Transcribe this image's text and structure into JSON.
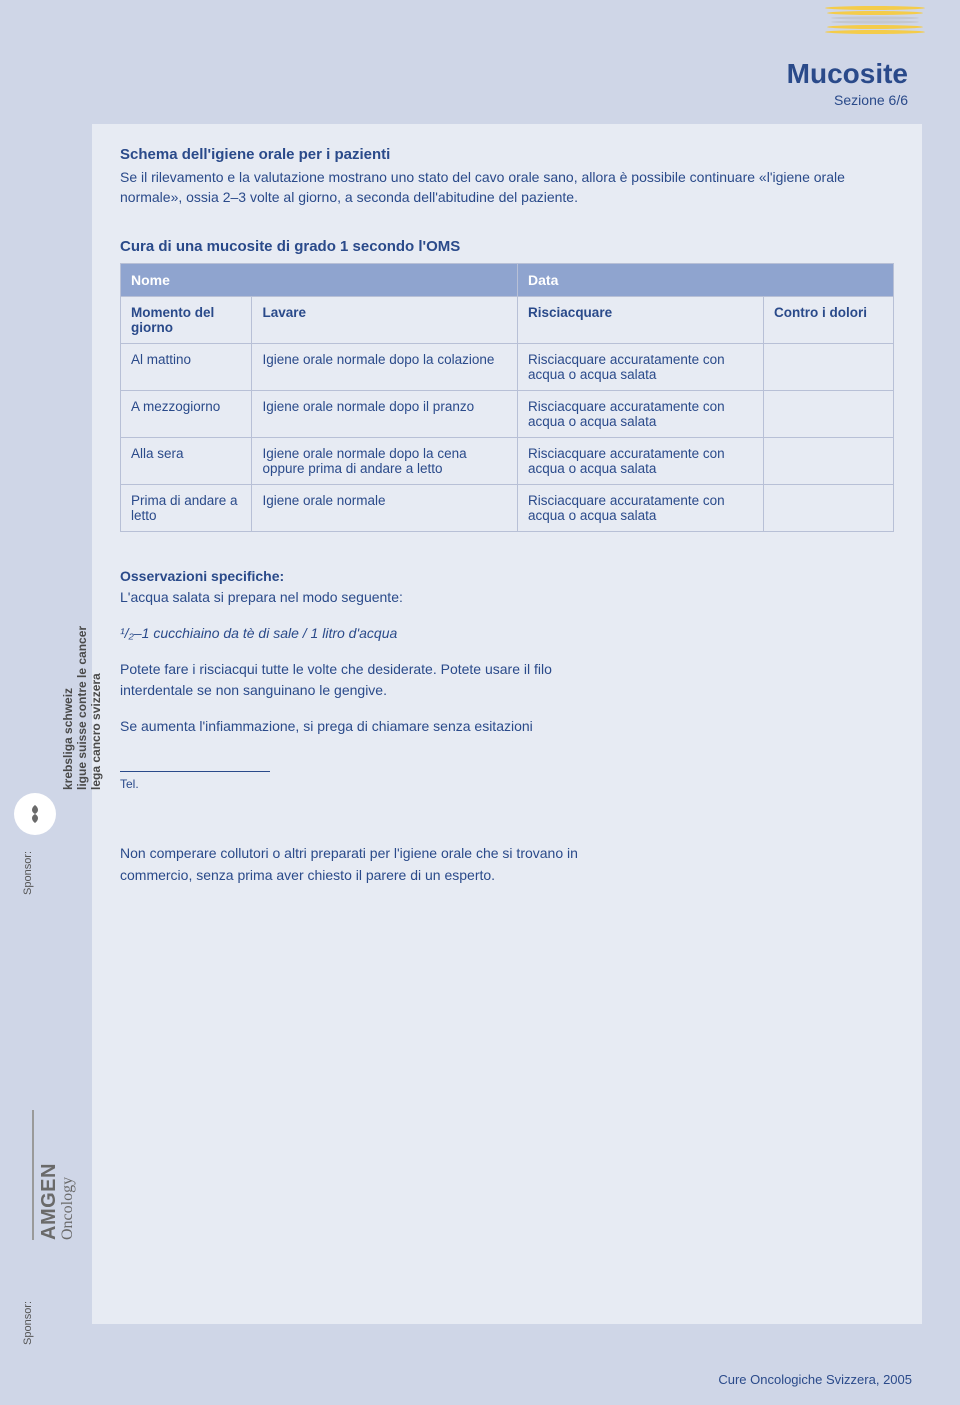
{
  "colors": {
    "page_bg": "#cfd6e7",
    "panel_bg": "#e7ebf3",
    "text": "#2a4a8a",
    "table_header_bg": "#8fa4cf",
    "table_header_text": "#ffffff",
    "table_border": "#b8c0d6",
    "sidebar_text": "#555555",
    "amgen_gray": "#6a6a6a"
  },
  "decor_line_colors": [
    "#f4cc4a",
    "#f4cc4a",
    "#c4c8d0",
    "#c4c8d0",
    "#f4cc4a",
    "#f4cc4a"
  ],
  "header": {
    "title": "Mucosite",
    "section": "Sezione 6/6"
  },
  "intro": {
    "heading": "Schema dell'igiene orale per i pazienti",
    "text": "Se il rilevamento e la valutazione mostrano uno stato del cavo orale sano, allora è possibile continuare «l'igiene orale normale», ossia 2–3 volte al giorno, a seconda dell'abitudine del paziente."
  },
  "table": {
    "caption": "Cura di una mucosite di grado 1 secondo l'OMS",
    "head1": {
      "left": "Nome",
      "right": "Data"
    },
    "columns": [
      "Momento del giorno",
      "Lavare",
      "Risciacquare",
      "Contro i dolori"
    ],
    "col_widths_pct": [
      22,
      30,
      32,
      16
    ],
    "rows": [
      {
        "time": "Al mattino",
        "wash": "Igiene orale normale dopo la colazione",
        "rinse": "Risciacquare accuratamente con acqua o acqua salata",
        "pain": ""
      },
      {
        "time": "A mezzogiorno",
        "wash": "Igiene orale normale dopo il pranzo",
        "rinse": "Risciacquare accuratamente con acqua o acqua salata",
        "pain": ""
      },
      {
        "time": "Alla sera",
        "wash": "Igiene orale normale dopo la cena oppure prima di andare a letto",
        "rinse": "Risciacquare accuratamente con acqua o acqua salata",
        "pain": ""
      },
      {
        "time": "Prima di andare a letto",
        "wash": "Igiene orale normale",
        "rinse": "Risciacquare accuratamente con acqua o acqua salata",
        "pain": ""
      }
    ]
  },
  "observations": {
    "heading": "Osservazioni specifiche:",
    "p1": "L'acqua salata si prepara nel modo seguente:",
    "recipe": "¹/₂–1 cucchiaino da tè di sale / 1 litro d'acqua",
    "p2": "Potete fare i risciacqui tutte le volte che desiderate. Potete usare il filo interdentale se non sanguinano le gengive.",
    "p3": "Se aumenta l'infiammazione, si prega di chiamare senza esitazioni",
    "tel_label": "Tel.",
    "p4": "Non comperare collutori o altri preparati per l'igiene orale che si trovano in commercio, senza prima aver chiesto il parere di un esperto."
  },
  "sidebar": {
    "sponsor_label": "Sponsor:",
    "league_lines": [
      "krebsliga schweiz",
      "ligue suisse contre le cancer",
      "lega cancro svizzera"
    ],
    "amgen_brand": "AMGEN",
    "amgen_sub": "Oncology"
  },
  "footer": "Cure Oncologiche Svizzera, 2005"
}
